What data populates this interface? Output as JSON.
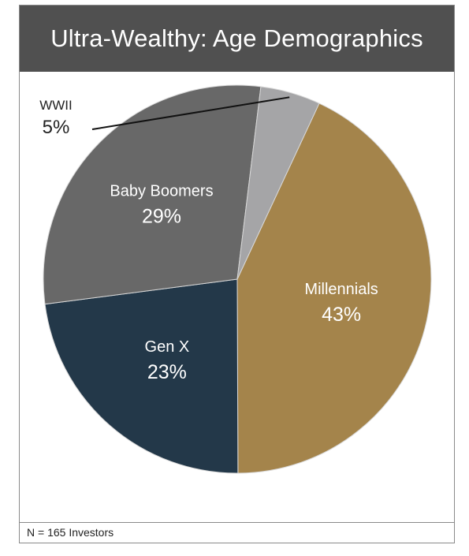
{
  "title": "Ultra-Wealthy: Age Demographics",
  "footnote": "N = 165 Investors",
  "chart_data": {
    "type": "pie",
    "title": "Ultra-Wealthy: Age Demographics",
    "start_angle_deg": -65,
    "slices": [
      {
        "label": "Millennials",
        "value": 43,
        "display": "43%",
        "color": "#a4844b",
        "label_color": "#ffffff"
      },
      {
        "label": "Gen X",
        "value": 23,
        "display": "23%",
        "color": "#233849",
        "label_color": "#ffffff"
      },
      {
        "label": "Baby Boomers",
        "value": 29,
        "display": "29%",
        "color": "#686868",
        "label_color": "#ffffff"
      },
      {
        "label": "WWII",
        "value": 5,
        "display": "5%",
        "color": "#a5a5a7",
        "label_color": "#222222",
        "label_outside": true
      }
    ]
  }
}
